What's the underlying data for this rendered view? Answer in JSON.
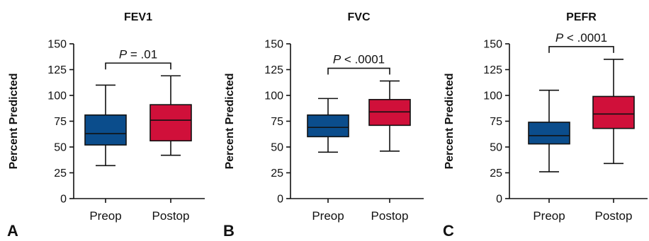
{
  "colors": {
    "preop": "#0b4d8c",
    "postop": "#d0103a"
  },
  "chart_data": [
    {
      "type": "boxplot",
      "panel_label": "A",
      "title": "FEV1",
      "ylabel": "Percent Predicted",
      "ylim": [
        0,
        150
      ],
      "yticks": [
        0,
        25,
        50,
        75,
        100,
        125,
        150
      ],
      "ytick_labels": [
        "0",
        "25",
        "50",
        "75",
        "100",
        "125",
        "150"
      ],
      "categories": [
        "Preop",
        "Postop"
      ],
      "boxes": [
        {
          "category": "Preop",
          "min": 32,
          "q1": 52,
          "median": 63,
          "q3": 81,
          "max": 110
        },
        {
          "category": "Postop",
          "min": 42,
          "q1": 56,
          "median": 76,
          "q3": 91,
          "max": 119
        }
      ],
      "annotation": {
        "p_symbol": "P",
        "p_rest": " = .01"
      }
    },
    {
      "type": "boxplot",
      "panel_label": "B",
      "title": "FVC",
      "ylabel": "Percent Predicted",
      "ylim": [
        0,
        150
      ],
      "yticks": [
        0,
        25,
        50,
        75,
        100,
        125,
        150
      ],
      "ytick_labels": [
        "0",
        "25",
        "50",
        "75",
        "100",
        "125",
        "150"
      ],
      "categories": [
        "Preop",
        "Postop"
      ],
      "boxes": [
        {
          "category": "Preop",
          "min": 45,
          "q1": 60,
          "median": 69,
          "q3": 81,
          "max": 97
        },
        {
          "category": "Postop",
          "min": 46,
          "q1": 71,
          "median": 84,
          "q3": 96,
          "max": 114
        }
      ],
      "annotation": {
        "p_symbol": "P",
        "p_rest": " < .0001"
      }
    },
    {
      "type": "boxplot",
      "panel_label": "C",
      "title": "PEFR",
      "ylabel": "Percent Predicted",
      "ylim": [
        0,
        150
      ],
      "yticks": [
        0,
        25,
        50,
        75,
        100,
        125,
        150
      ],
      "ytick_labels": [
        "0",
        "25",
        "50",
        "75",
        "100",
        "125",
        "150"
      ],
      "categories": [
        "Preop",
        "Postop"
      ],
      "boxes": [
        {
          "category": "Preop",
          "min": 26,
          "q1": 53,
          "median": 61,
          "q3": 74,
          "max": 105
        },
        {
          "category": "Postop",
          "min": 34,
          "q1": 68,
          "median": 82,
          "q3": 99,
          "max": 135
        }
      ],
      "annotation": {
        "p_symbol": "P",
        "p_rest": " < .0001"
      }
    }
  ]
}
